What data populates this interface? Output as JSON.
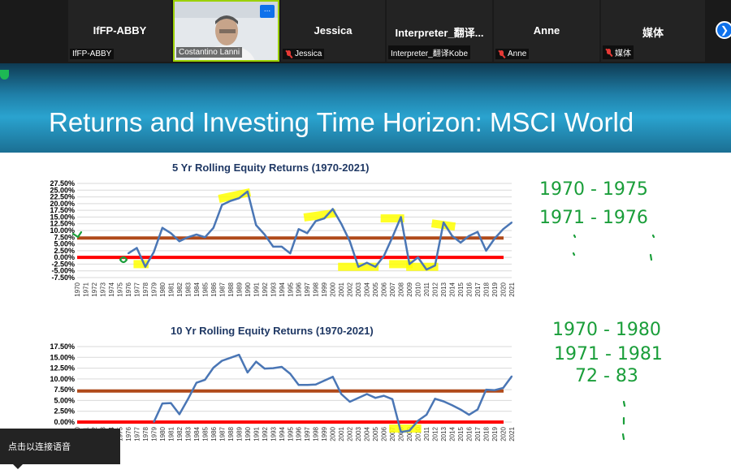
{
  "participants": [
    {
      "big": "IfFP-ABBY",
      "label": "IfFP-ABBY",
      "muted": false
    },
    {
      "big": "",
      "label": "Costantino Lanni",
      "muted": false,
      "video": true
    },
    {
      "big": "Jessica",
      "label": "Jessica",
      "muted": true
    },
    {
      "big": "Interpreter_翻译...",
      "label": "Interpreter_翻译Kobe",
      "muted": false
    },
    {
      "big": "Anne",
      "label": "Anne",
      "muted": true
    },
    {
      "big": "媒体",
      "label": "媒体",
      "muted": true
    }
  ],
  "menu_dots": "...",
  "slide": {
    "title": "Returns and Investing Time Horizon: MSCI World"
  },
  "toast": "点击以连接语音",
  "annotations": {
    "top": [
      "1970 - 1975",
      "1971 - 1976"
    ],
    "bottom": [
      "1970 - 1980",
      "1971 - 1981",
      "72 - 83"
    ]
  },
  "colors": {
    "line": "#4a76b5",
    "red": "#ff0000",
    "brown": "#b04a1a",
    "highlight": "#ffff00",
    "ink": "#1a9e3a"
  },
  "chart_data": [
    {
      "type": "line",
      "title": "5 Yr Rolling Equity Returns (1970-2021)",
      "x": [
        "1970",
        "1971",
        "1972",
        "1973",
        "1974",
        "1975",
        "1976",
        "1977",
        "1978",
        "1979",
        "1980",
        "1981",
        "1982",
        "1983",
        "1984",
        "1985",
        "1986",
        "1987",
        "1988",
        "1989",
        "1990",
        "1991",
        "1992",
        "1993",
        "1994",
        "1995",
        "1996",
        "1997",
        "1998",
        "1999",
        "2000",
        "2001",
        "2002",
        "2003",
        "2004",
        "2005",
        "2006",
        "2007",
        "2008",
        "2009",
        "2010",
        "2011",
        "2012",
        "2013",
        "2014",
        "2015",
        "2016",
        "2017",
        "2018",
        "2019",
        "2020",
        "2021"
      ],
      "y_ticks": [
        "27.50%",
        "25.00%",
        "22.50%",
        "20.00%",
        "17.50%",
        "15.00%",
        "12.50%",
        "10.00%",
        "7.50%",
        "5.00%",
        "2.50%",
        "0.00%",
        "-2.50%",
        "-5.00%",
        "-7.50%"
      ],
      "ylim": [
        -7.5,
        27.5
      ],
      "series": [
        {
          "values": [
            null,
            null,
            null,
            null,
            null,
            null,
            1.5,
            3.5,
            -3.5,
            2,
            11,
            9,
            6,
            7.5,
            8.5,
            7.5,
            11,
            19.5,
            21,
            22,
            24.5,
            12,
            8.5,
            4,
            4,
            1.5,
            10.5,
            9,
            13.5,
            14.5,
            18,
            12.5,
            6,
            -3.5,
            -2,
            -3.5,
            0.5,
            7.5,
            15,
            -2.5,
            0,
            -4.5,
            -3,
            13,
            8,
            5.5,
            8,
            9.5,
            2.5,
            7,
            10.5,
            13
          ]
        }
      ],
      "reference_lines": [
        {
          "value": 7.2,
          "color": "#b04a1a"
        },
        {
          "value": 0,
          "color": "#ff0000"
        }
      ]
    },
    {
      "type": "line",
      "title": "10 Yr Rolling Equity Returns (1970-2021)",
      "x": [
        "1970",
        "1971",
        "1972",
        "1973",
        "1974",
        "1975",
        "1976",
        "1977",
        "1978",
        "1979",
        "1980",
        "1981",
        "1982",
        "1983",
        "1984",
        "1985",
        "1986",
        "1987",
        "1988",
        "1989",
        "1990",
        "1991",
        "1992",
        "1993",
        "1994",
        "1995",
        "1996",
        "1997",
        "1998",
        "1999",
        "2000",
        "2001",
        "2002",
        "2003",
        "2004",
        "2005",
        "2006",
        "2007",
        "2008",
        "2009",
        "2010",
        "2011",
        "2012",
        "2013",
        "2014",
        "2015",
        "2016",
        "2017",
        "2018",
        "2019",
        "2020",
        "2021"
      ],
      "y_ticks": [
        "17.50%",
        "15.00%",
        "12.50%",
        "10.00%",
        "7.50%",
        "5.00%",
        "2.50%",
        "0.00%"
      ],
      "ylim": [
        0,
        17.5
      ],
      "series": [
        {
          "values": [
            null,
            null,
            null,
            null,
            null,
            null,
            null,
            null,
            null,
            0,
            4.3,
            4.4,
            1.8,
            5.3,
            9.1,
            9.8,
            12.6,
            14.2,
            14.9,
            15.6,
            11.5,
            14,
            12.4,
            12.5,
            12.8,
            11.2,
            8.6,
            8.6,
            8.7,
            9.6,
            10.5,
            6.5,
            4.7,
            5.6,
            6.5,
            5.6,
            6.1,
            5.3,
            -2.3,
            -2,
            0.3,
            1.7,
            5.4,
            4.8,
            3.9,
            2.9,
            1.7,
            2.9,
            7.5,
            7.4,
            7.9,
            10.6
          ]
        }
      ],
      "reference_lines": [
        {
          "value": 7.2,
          "color": "#b04a1a"
        },
        {
          "value": 0,
          "color": "#ff0000"
        }
      ]
    }
  ]
}
